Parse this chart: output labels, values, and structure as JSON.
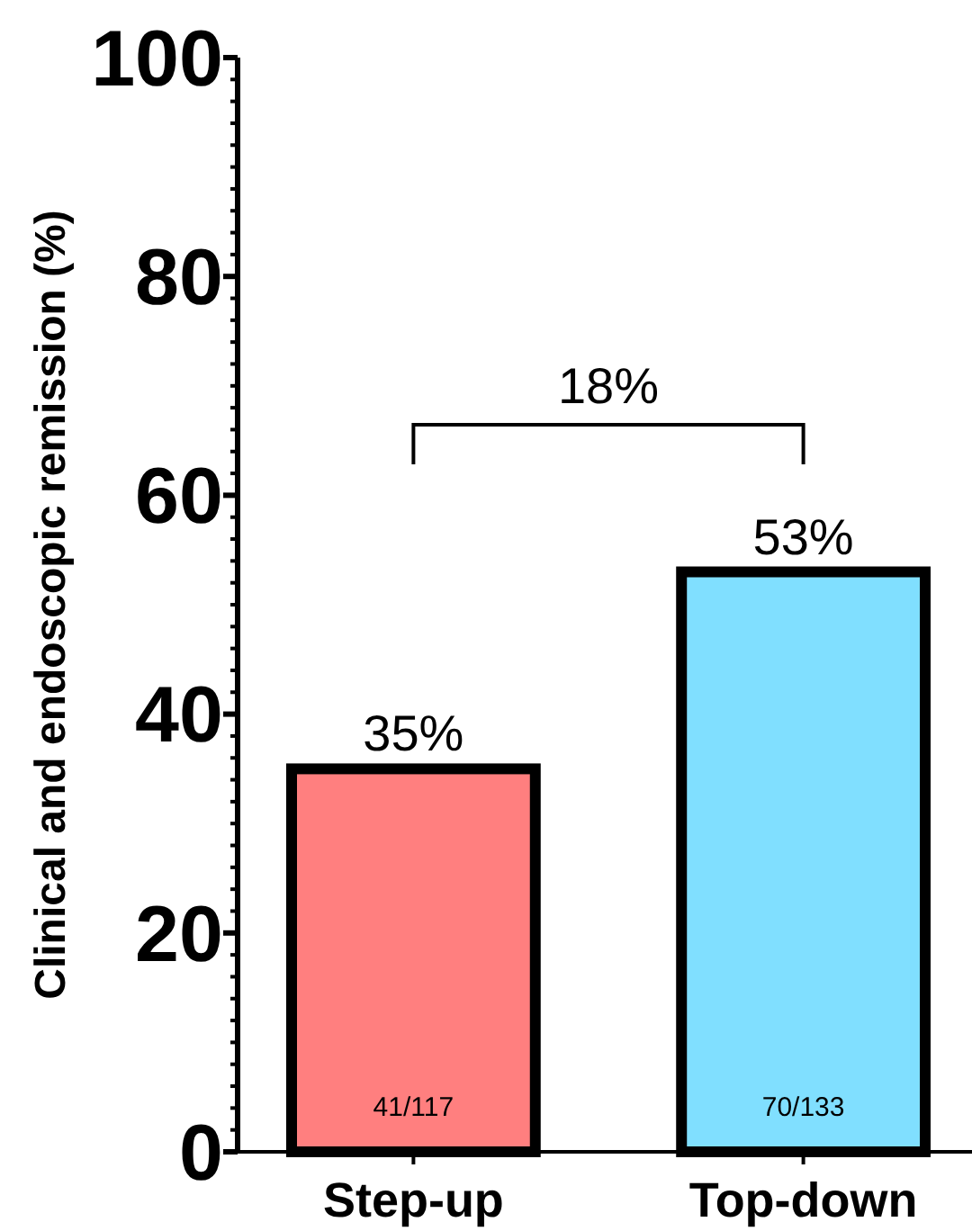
{
  "chart_data": {
    "type": "bar",
    "ylabel": "Clinical and endoscopic remission (%)",
    "categories": [
      "Step-up",
      "Top-down"
    ],
    "series": [
      {
        "colors": [
          "#ff7f7f",
          "#80dfff"
        ],
        "values": [
          35,
          53
        ],
        "value_labels": [
          "35%",
          "53%"
        ]
      }
    ],
    "ylim": [
      0,
      100
    ],
    "yticks": [
      0,
      {
        "value": 2,
        "label": null
      },
      {
        "value": 4,
        "label": null
      },
      {
        "value": 6,
        "label": null
      },
      {
        "value": 8,
        "label": null
      },
      {
        "value": 10,
        "label": null
      },
      {
        "value": 12,
        "label": null
      },
      {
        "value": 14,
        "label": null
      },
      {
        "value": 16,
        "label": null
      },
      {
        "value": 18,
        "label": null
      },
      20,
      {
        "value": 22,
        "label": null
      },
      {
        "value": 24,
        "label": null
      },
      {
        "value": 26,
        "label": null
      },
      {
        "value": 28,
        "label": null
      },
      {
        "value": 30,
        "label": null
      },
      {
        "value": 32,
        "label": null
      },
      {
        "value": 34,
        "label": null
      },
      {
        "value": 36,
        "label": null
      },
      {
        "value": 38,
        "label": null
      },
      40,
      {
        "value": 42,
        "label": null
      },
      {
        "value": 44,
        "label": null
      },
      {
        "value": 46,
        "label": null
      },
      {
        "value": 48,
        "label": null
      },
      {
        "value": 50,
        "label": null
      },
      {
        "value": 52,
        "label": null
      },
      {
        "value": 54,
        "label": null
      },
      {
        "value": 56,
        "label": null
      },
      {
        "value": 58,
        "label": null
      },
      60,
      {
        "value": 62,
        "label": null
      },
      {
        "value": 64,
        "label": null
      },
      {
        "value": 66,
        "label": null
      },
      {
        "value": 68,
        "label": null
      },
      {
        "value": 70,
        "label": null
      },
      {
        "value": 72,
        "label": null
      },
      {
        "value": 74,
        "label": null
      },
      {
        "value": 76,
        "label": null
      },
      {
        "value": 78,
        "label": null
      },
      80,
      {
        "value": 82,
        "label": null
      },
      {
        "value": 84,
        "label": null
      },
      {
        "value": 86,
        "label": null
      },
      {
        "value": 88,
        "label": null
      },
      {
        "value": 90,
        "label": null
      },
      {
        "value": 92,
        "label": null
      },
      {
        "value": 94,
        "label": null
      },
      {
        "value": 96,
        "label": null
      },
      {
        "value": 98,
        "label": null
      },
      100
    ],
    "annotations": [
      "41/117",
      "70/133",
      "18%"
    ],
    "grid": false
  }
}
